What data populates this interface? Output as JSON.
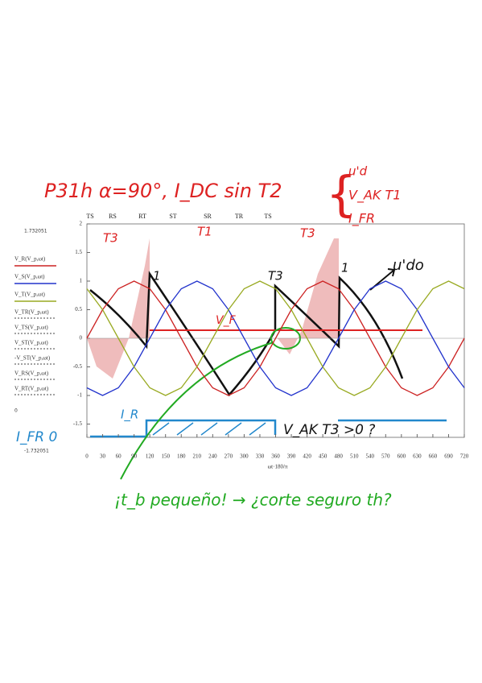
{
  "chart_data": {
    "type": "line",
    "x_label": "ωt·180/π",
    "x": [
      0,
      30,
      60,
      90,
      120,
      150,
      180,
      210,
      240,
      270,
      300,
      330,
      360,
      390,
      420,
      450,
      480,
      510,
      540,
      570,
      600,
      630,
      660,
      690,
      720
    ],
    "series": [
      {
        "name": "V_R(V_p,ωt)",
        "color": "#cc2222",
        "values": [
          0,
          0.5,
          0.866,
          1,
          0.866,
          0.5,
          0,
          -0.5,
          -0.866,
          -1,
          -0.866,
          -0.5,
          0,
          0.5,
          0.866,
          1,
          0.866,
          0.5,
          0,
          -0.5,
          -0.866,
          -1,
          -0.866,
          -0.5,
          0
        ]
      },
      {
        "name": "V_S(V_p,ωt)",
        "color": "#2233cc",
        "values": [
          -0.866,
          -1,
          -0.866,
          -0.5,
          0,
          0.5,
          0.866,
          1,
          0.866,
          0.5,
          0,
          -0.5,
          -0.866,
          -1,
          -0.866,
          -0.5,
          0,
          0.5,
          0.866,
          1,
          0.866,
          0.5,
          0,
          -0.5,
          -0.866
        ]
      },
      {
        "name": "V_T(V_p,ωt)",
        "color": "#99aa22",
        "values": [
          0.866,
          0.5,
          0,
          -0.5,
          -0.866,
          -1,
          -0.866,
          -0.5,
          0,
          0.5,
          0.866,
          1,
          0.866,
          0.5,
          0,
          -0.5,
          -0.866,
          -1,
          -0.866,
          -0.5,
          0,
          0.5,
          0.866,
          1,
          0.866
        ]
      }
    ],
    "legend_extra": [
      "V_TR(V_p,ωt)",
      "V_TS(V_p,ωt)",
      "V_ST(V_p,ωt)",
      "-V_ST(V_p,ωt)",
      "V_RS(V_p,ωt)",
      "V_RT(V_p,ωt)"
    ],
    "xlim": [
      0,
      720
    ],
    "xticks": [
      0,
      30,
      60,
      90,
      120,
      150,
      180,
      210,
      240,
      270,
      300,
      330,
      360,
      390,
      420,
      450,
      480,
      510,
      540,
      570,
      600,
      630,
      660,
      690,
      720
    ],
    "ylim": [
      -1.732051,
      2
    ],
    "yticks": [
      -1.5,
      -1,
      -0.5,
      0,
      0.5,
      1,
      1.5,
      2
    ],
    "top_labels": [
      "TS",
      "RS",
      "RT",
      "ST",
      "SR",
      "TR",
      "TS"
    ],
    "annotations": [
      "P31h  α=90°, I_DC  sin T2",
      "u'd",
      "V_AK T1",
      "I_FR",
      "T3",
      "T1",
      "T3",
      "1",
      "T3",
      "1",
      "u'do",
      "V_F",
      "I_R",
      "I_FR  0",
      "V_AK T3  >0 ?",
      "¡t_b pequeño! → ¿corte seguro th?",
      "1.732051",
      "-1.732051",
      "0"
    ]
  }
}
